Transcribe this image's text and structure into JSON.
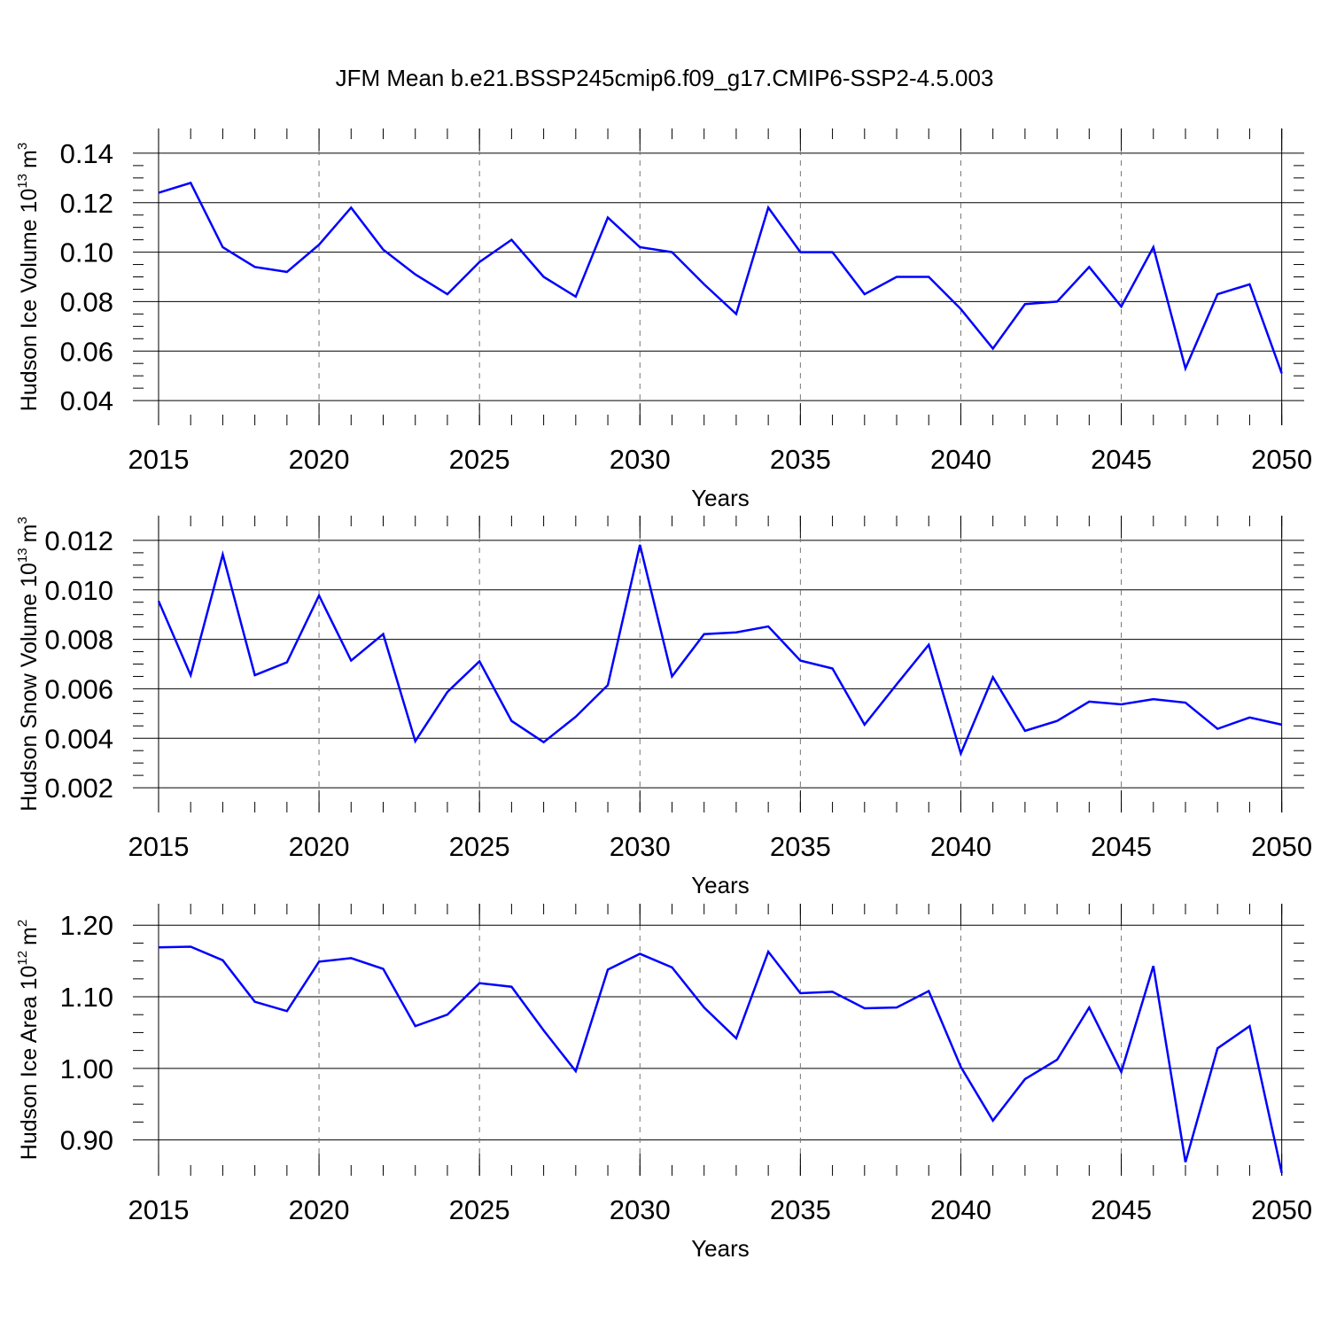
{
  "chart_data": [
    {
      "type": "line",
      "title": "JFM Mean b.e21.BSSP245cmip6.f09_g17.CMIP6-SSP2-4.5.003",
      "xlabel": "Years",
      "ylabel": "Hudson Ice Volume 10",
      "ylabel_exp": "13",
      "ylabel_unit": "m",
      "ylabel_unit_exp": "3",
      "x": [
        2015,
        2016,
        2017,
        2018,
        2019,
        2020,
        2021,
        2022,
        2023,
        2024,
        2025,
        2026,
        2027,
        2028,
        2029,
        2030,
        2031,
        2032,
        2033,
        2034,
        2035,
        2036,
        2037,
        2038,
        2039,
        2040,
        2041,
        2042,
        2043,
        2044,
        2045,
        2046,
        2047,
        2048,
        2049,
        2050
      ],
      "values": [
        0.124,
        0.128,
        0.102,
        0.094,
        0.092,
        0.103,
        0.118,
        0.101,
        0.091,
        0.083,
        0.096,
        0.105,
        0.09,
        0.082,
        0.114,
        0.102,
        0.1,
        0.087,
        0.075,
        0.118,
        0.1,
        0.1,
        0.083,
        0.09,
        0.09,
        0.077,
        0.061,
        0.079,
        0.08,
        0.094,
        0.078,
        0.102,
        0.053,
        0.083,
        0.087,
        0.051
      ],
      "color": "#0000ff",
      "xlim": [
        2014.2,
        2050.7
      ],
      "ylim": [
        0.03,
        0.15
      ],
      "xticks": [
        2015,
        2020,
        2025,
        2030,
        2035,
        2040,
        2045,
        2050
      ],
      "yticks": [
        0.04,
        0.06,
        0.08,
        {
          "value": 0.1,
          "label": "0.10"
        },
        0.12,
        0.14
      ],
      "grid": true
    },
    {
      "type": "line",
      "xlabel": "Years",
      "ylabel": "Hudson Snow Volume 10",
      "ylabel_exp": "13",
      "ylabel_unit": "m",
      "ylabel_unit_exp": "3",
      "x": [
        2015,
        2016,
        2017,
        2018,
        2019,
        2020,
        2021,
        2022,
        2023,
        2024,
        2025,
        2026,
        2027,
        2028,
        2029,
        2030,
        2031,
        2032,
        2033,
        2034,
        2035,
        2036,
        2037,
        2038,
        2039,
        2040,
        2041,
        2042,
        2043,
        2044,
        2045,
        2046,
        2047,
        2048,
        2049,
        2050
      ],
      "values": [
        0.00955,
        0.00655,
        0.01143,
        0.00655,
        0.00707,
        0.00977,
        0.00714,
        0.00821,
        0.00388,
        0.00587,
        0.00711,
        0.0047,
        0.00384,
        0.00487,
        0.00615,
        0.01182,
        0.0065,
        0.00821,
        0.00828,
        0.00852,
        0.00714,
        0.00682,
        0.00455,
        0.00618,
        0.00778,
        0.00338,
        0.00647,
        0.0043,
        0.0047,
        0.00548,
        0.00537,
        0.00558,
        0.00544,
        0.00438,
        0.00484,
        0.00455
      ],
      "color": "#0000ff",
      "xlim": [
        2014.2,
        2050.7
      ],
      "ylim": [
        0.001,
        0.013
      ],
      "xticks": [
        2015,
        2020,
        2025,
        2030,
        2035,
        2040,
        2045,
        2050
      ],
      "yticks": [
        0.002,
        0.004,
        0.006,
        0.008,
        {
          "value": 0.01,
          "label": "0.010"
        },
        0.012
      ],
      "grid": true
    },
    {
      "type": "line",
      "xlabel": "Years",
      "ylabel": "Hudson Ice Area 10",
      "ylabel_exp": "12",
      "ylabel_unit": "m",
      "ylabel_unit_exp": "2",
      "x": [
        2015,
        2016,
        2017,
        2018,
        2019,
        2020,
        2021,
        2022,
        2023,
        2024,
        2025,
        2026,
        2027,
        2028,
        2029,
        2030,
        2031,
        2032,
        2033,
        2034,
        2035,
        2036,
        2037,
        2038,
        2039,
        2040,
        2041,
        2042,
        2043,
        2044,
        2045,
        2046,
        2047,
        2048,
        2049,
        2050
      ],
      "values": [
        1.169,
        1.17,
        1.151,
        1.093,
        1.08,
        1.149,
        1.154,
        1.139,
        1.059,
        1.075,
        1.119,
        1.114,
        1.053,
        0.996,
        1.138,
        1.16,
        1.141,
        1.085,
        1.042,
        1.163,
        1.105,
        1.107,
        1.084,
        1.085,
        1.108,
        1.002,
        0.927,
        0.985,
        1.012,
        1.085,
        0.995,
        1.143,
        0.869,
        1.028,
        1.059,
        0.854
      ],
      "color": "#0000ff",
      "xlim": [
        2014.2,
        2050.7
      ],
      "ylim": [
        0.85,
        1.23
      ],
      "xticks": [
        2015,
        2020,
        2025,
        2030,
        2035,
        2040,
        2045,
        2050
      ],
      "yticks": [
        {
          "value": 0.9,
          "label": "0.90"
        },
        {
          "value": 1,
          "label": "1.00"
        },
        {
          "value": 1.1,
          "label": "1.10"
        },
        {
          "value": 1.2,
          "label": "1.20"
        }
      ],
      "grid": true
    }
  ]
}
